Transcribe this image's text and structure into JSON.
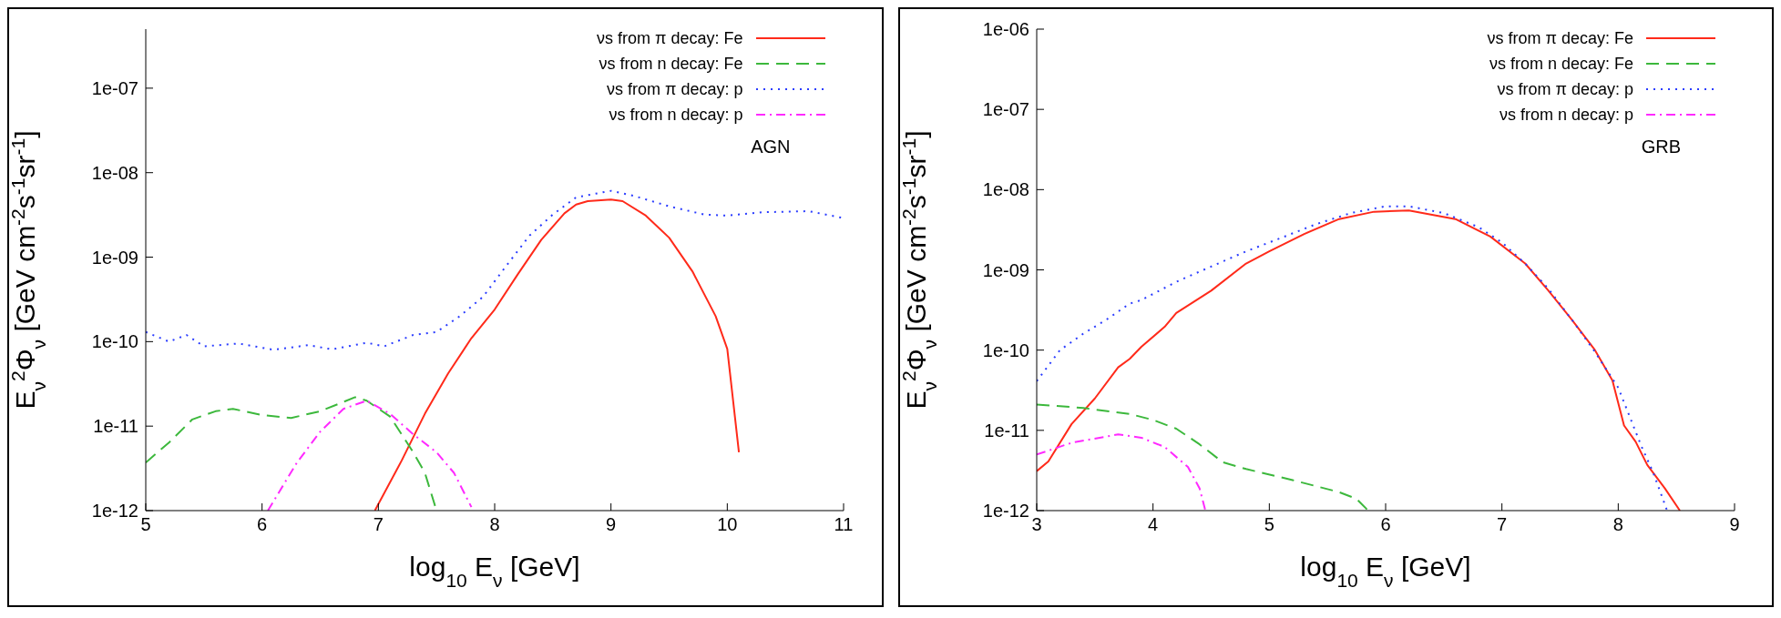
{
  "chart_data": [
    {
      "type": "line",
      "xlabel": "log$_{10}$ E$_{ν}$ [GeV]",
      "ylabel": "E$_{ν}$$^{2}$Φ$_{ν}$ [GeV cm$^{-2}$s$^{-1}$sr$^{-1}$]",
      "annotations": [
        "AGN"
      ],
      "log": "y",
      "legend": "top right",
      "xlim": [
        5,
        11
      ],
      "xticks": [
        5,
        6,
        7,
        8,
        9,
        10,
        11
      ],
      "ylim": [
        1e-12,
        5e-07
      ],
      "yticks": [
        {
          "value": 1e-12,
          "label": "1e-12"
        },
        {
          "value": 1e-11,
          "label": "1e-11"
        },
        {
          "value": 1e-10,
          "label": "1e-10"
        },
        {
          "value": 1e-09,
          "label": "1e-09"
        },
        {
          "value": 1e-08,
          "label": "1e-08"
        },
        {
          "value": 1e-07,
          "label": "1e-07"
        }
      ],
      "series": [
        {
          "name": "νs from π decay: Fe",
          "color": "#ff2a1a",
          "line_style": "solid",
          "x": [
            6.97,
            7.2,
            7.4,
            7.6,
            7.8,
            8.0,
            8.2,
            8.4,
            8.6,
            8.7,
            8.8,
            9.0,
            9.1,
            9.3,
            9.5,
            9.7,
            9.9,
            10.0,
            10.1
          ],
          "values": [
            1e-12,
            3.9e-12,
            1.4e-11,
            4.2e-11,
            1.1e-10,
            2.4e-10,
            6.3e-10,
            1.6e-09,
            3.3e-09,
            4.2e-09,
            4.6e-09,
            4.8e-09,
            4.6e-09,
            3.1e-09,
            1.7e-09,
            6.8e-10,
            2e-10,
            8.2e-11,
            4.9e-12
          ]
        },
        {
          "name": "νs from n decay: Fe",
          "color": "#3cb83c",
          "line_style": "dashed",
          "x": [
            5.0,
            5.2,
            5.4,
            5.6,
            5.75,
            6.0,
            6.25,
            6.5,
            6.8,
            6.9,
            7.1,
            7.3,
            7.4,
            7.5
          ],
          "values": [
            3.7e-12,
            6.4e-12,
            1.2e-11,
            1.5e-11,
            1.6e-11,
            1.35e-11,
            1.25e-11,
            1.5e-11,
            2.2e-11,
            2e-11,
            1.3e-11,
            4.9e-12,
            2.8e-12,
            1e-12
          ]
        },
        {
          "name": "νs from π decay: p",
          "color": "#2a3cff",
          "line_style": "dotted",
          "x": [
            5.0,
            5.2,
            5.35,
            5.5,
            5.8,
            6.1,
            6.4,
            6.6,
            6.9,
            7.05,
            7.3,
            7.5,
            7.7,
            7.9,
            8.1,
            8.3,
            8.5,
            8.7,
            9.0,
            9.2,
            9.5,
            9.8,
            10.0,
            10.3,
            10.7,
            11.0
          ],
          "values": [
            1.3e-10,
            1e-10,
            1.2e-10,
            8.8e-11,
            9.5e-11,
            8e-11,
            9.1e-11,
            8.1e-11,
            9.7e-11,
            8.8e-11,
            1.2e-10,
            1.3e-10,
            2e-10,
            3.4e-10,
            7.9e-10,
            1.8e-09,
            3.2e-09,
            5.1e-09,
            6.1e-09,
            5.3e-09,
            4e-09,
            3.2e-09,
            3.1e-09,
            3.4e-09,
            3.5e-09,
            2.9e-09
          ]
        },
        {
          "name": "νs from n decay: p",
          "color": "#ff2aff",
          "line_style": "dashdot",
          "x": [
            6.05,
            6.3,
            6.5,
            6.7,
            6.9,
            7.1,
            7.3,
            7.5,
            7.65,
            7.8
          ],
          "values": [
            1e-12,
            3.7e-12,
            8.6e-12,
            1.6e-11,
            2e-11,
            1.4e-11,
            8e-12,
            4.9e-12,
            2.8e-12,
            1.1e-12
          ]
        }
      ]
    },
    {
      "type": "line",
      "xlabel": "log$_{10}$ E$_{ν}$ [GeV]",
      "ylabel": "E$_{ν}$$^{2}$Φ$_{ν}$ [GeV cm$^{-2}$s$^{-1}$sr$^{-1}$]",
      "annotations": [
        "GRB"
      ],
      "log": "y",
      "legend": "top right",
      "xlim": [
        3,
        9
      ],
      "xticks": [
        3,
        4,
        5,
        6,
        7,
        8,
        9
      ],
      "ylim": [
        1e-12,
        1e-06
      ],
      "yticks": [
        {
          "value": 1e-12,
          "label": "1e-12"
        },
        {
          "value": 1e-11,
          "label": "1e-11"
        },
        {
          "value": 1e-10,
          "label": "1e-10"
        },
        {
          "value": 1e-09,
          "label": "1e-09"
        },
        {
          "value": 1e-08,
          "label": "1e-08"
        },
        {
          "value": 1e-07,
          "label": "1e-07"
        },
        {
          "value": 1e-06,
          "label": "1e-06"
        }
      ],
      "series": [
        {
          "name": "νs from π decay: Fe",
          "color": "#ff2a1a",
          "line_style": "solid",
          "x": [
            3.0,
            3.1,
            3.3,
            3.5,
            3.7,
            3.8,
            3.9,
            4.1,
            4.2,
            4.5,
            4.8,
            5.0,
            5.3,
            5.6,
            5.9,
            6.2,
            6.6,
            6.9,
            7.2,
            7.4,
            7.6,
            7.8,
            7.95,
            8.05,
            8.15,
            8.25,
            8.4,
            8.53
          ],
          "values": [
            3.1e-12,
            4.1e-12,
            1.2e-11,
            2.5e-11,
            6.1e-11,
            7.8e-11,
            1.1e-10,
            1.95e-10,
            2.9e-10,
            5.5e-10,
            1.2e-09,
            1.7e-09,
            2.8e-09,
            4.3e-09,
            5.3e-09,
            5.5e-09,
            4.3e-09,
            2.6e-09,
            1.2e-09,
            5.5e-10,
            2.4e-10,
            1e-10,
            4.2e-11,
            1.15e-11,
            7.2e-12,
            3.7e-12,
            1.9e-12,
            1e-12
          ]
        },
        {
          "name": "νs from n decay: Fe",
          "color": "#3cb83c",
          "line_style": "dashed",
          "x": [
            3.0,
            3.4,
            3.8,
            4.0,
            4.2,
            4.4,
            4.6,
            4.8,
            5.2,
            5.6,
            5.75,
            5.85
          ],
          "values": [
            2.1e-11,
            1.9e-11,
            1.6e-11,
            1.35e-11,
            1.05e-11,
            6.7e-12,
            4e-12,
            3.3e-12,
            2.4e-12,
            1.7e-12,
            1.4e-12,
            1e-12
          ]
        },
        {
          "name": "νs from π decay: p",
          "color": "#2a3cff",
          "line_style": "dotted",
          "x": [
            3.0,
            3.2,
            3.4,
            3.6,
            3.8,
            3.9,
            4.2,
            4.5,
            4.8,
            5.1,
            5.4,
            5.7,
            6.0,
            6.2,
            6.5,
            6.8,
            7.0,
            7.2,
            7.4,
            7.6,
            7.8,
            8.0,
            8.2,
            8.3,
            8.42
          ],
          "values": [
            4.1e-11,
            1e-10,
            1.6e-10,
            2.4e-10,
            3.8e-10,
            4.2e-10,
            7.1e-10,
            1.1e-09,
            1.7e-09,
            2.5e-09,
            3.7e-09,
            5.1e-09,
            6.2e-09,
            6.2e-09,
            5.1e-09,
            3.4e-09,
            2.2e-09,
            1.2e-09,
            5.8e-10,
            2.4e-10,
            9.5e-11,
            3.4e-11,
            6.3e-12,
            3e-12,
            1e-12
          ]
        },
        {
          "name": "νs from n decay: p",
          "color": "#ff2aff",
          "line_style": "dashdot",
          "x": [
            3.0,
            3.3,
            3.7,
            3.9,
            4.1,
            4.3,
            4.4,
            4.45
          ],
          "values": [
            5e-12,
            7e-12,
            8.9e-12,
            8.1e-12,
            6.2e-12,
            3.5e-12,
            1.9e-12,
            1e-12
          ]
        }
      ]
    }
  ]
}
